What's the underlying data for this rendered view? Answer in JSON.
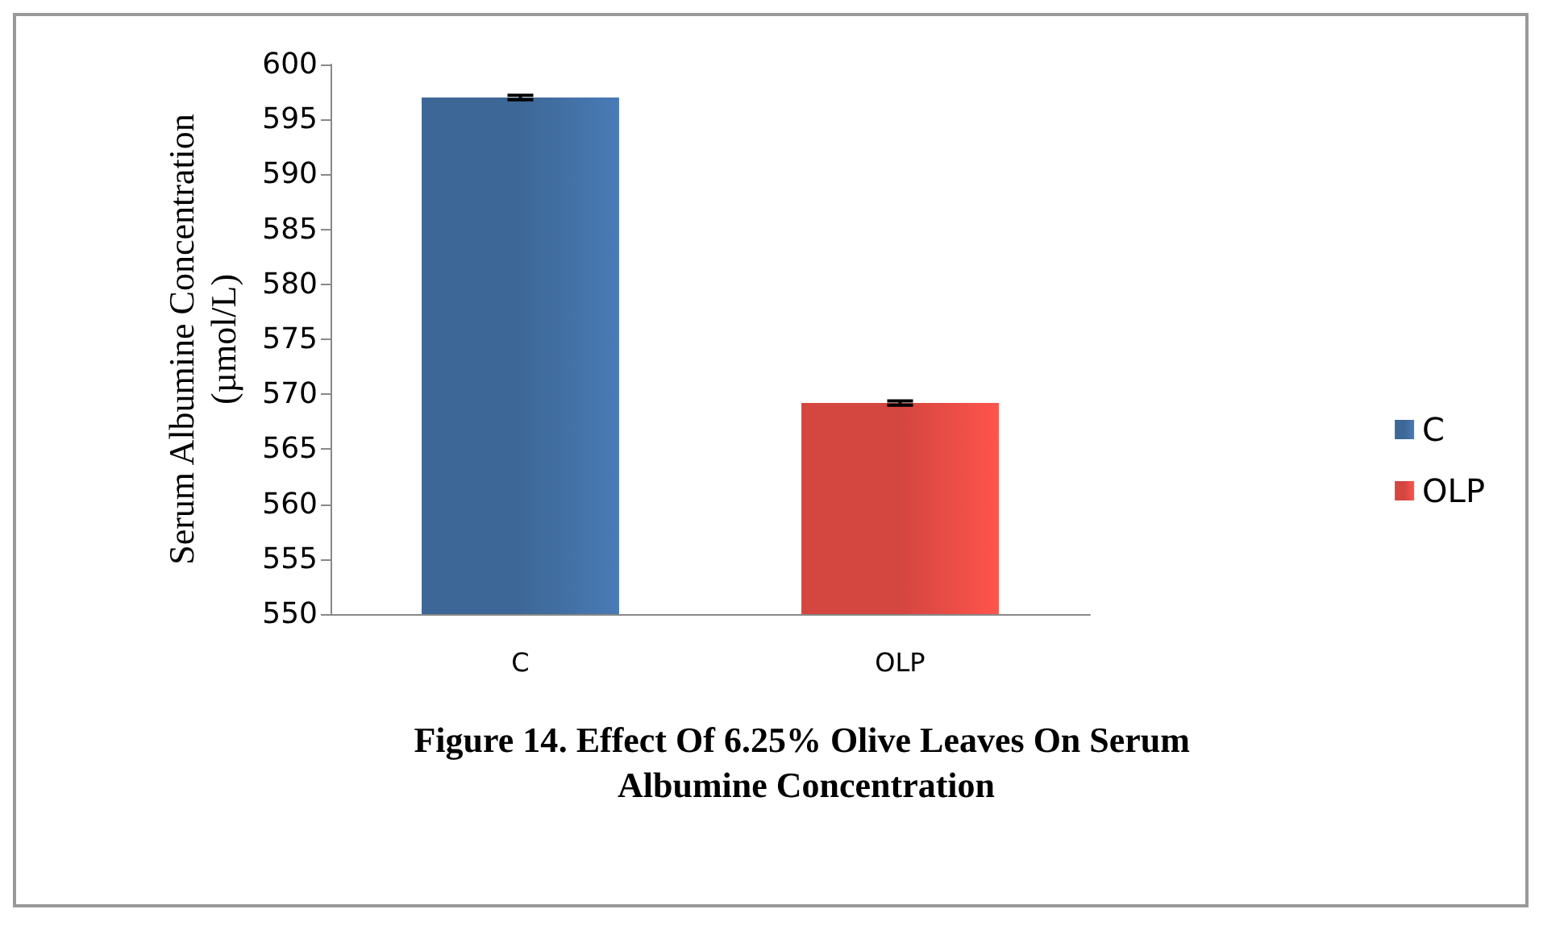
{
  "chart_data": {
    "type": "bar",
    "title": "Figure 14. Effect Of 6.25% Olive Leaves On Serum Albumine Concentration",
    "ylabel": "Serum Albumine Concentration\n(µmol/L)",
    "categories": [
      "C",
      "OLP"
    ],
    "stacked": true,
    "series": [
      {
        "name": "C",
        "color": "#3d6797",
        "values": [
          597.0,
          null
        ],
        "errors": [
          0.2,
          null
        ]
      },
      {
        "name": "OLP",
        "color": "#d44640",
        "values": [
          null,
          569.2
        ],
        "errors": [
          null,
          0.2
        ]
      }
    ],
    "ylim": [
      550,
      600
    ],
    "yticks": [
      550,
      555,
      560,
      565,
      570,
      575,
      580,
      585,
      590,
      595,
      600
    ],
    "grid": false,
    "legend": "right"
  }
}
